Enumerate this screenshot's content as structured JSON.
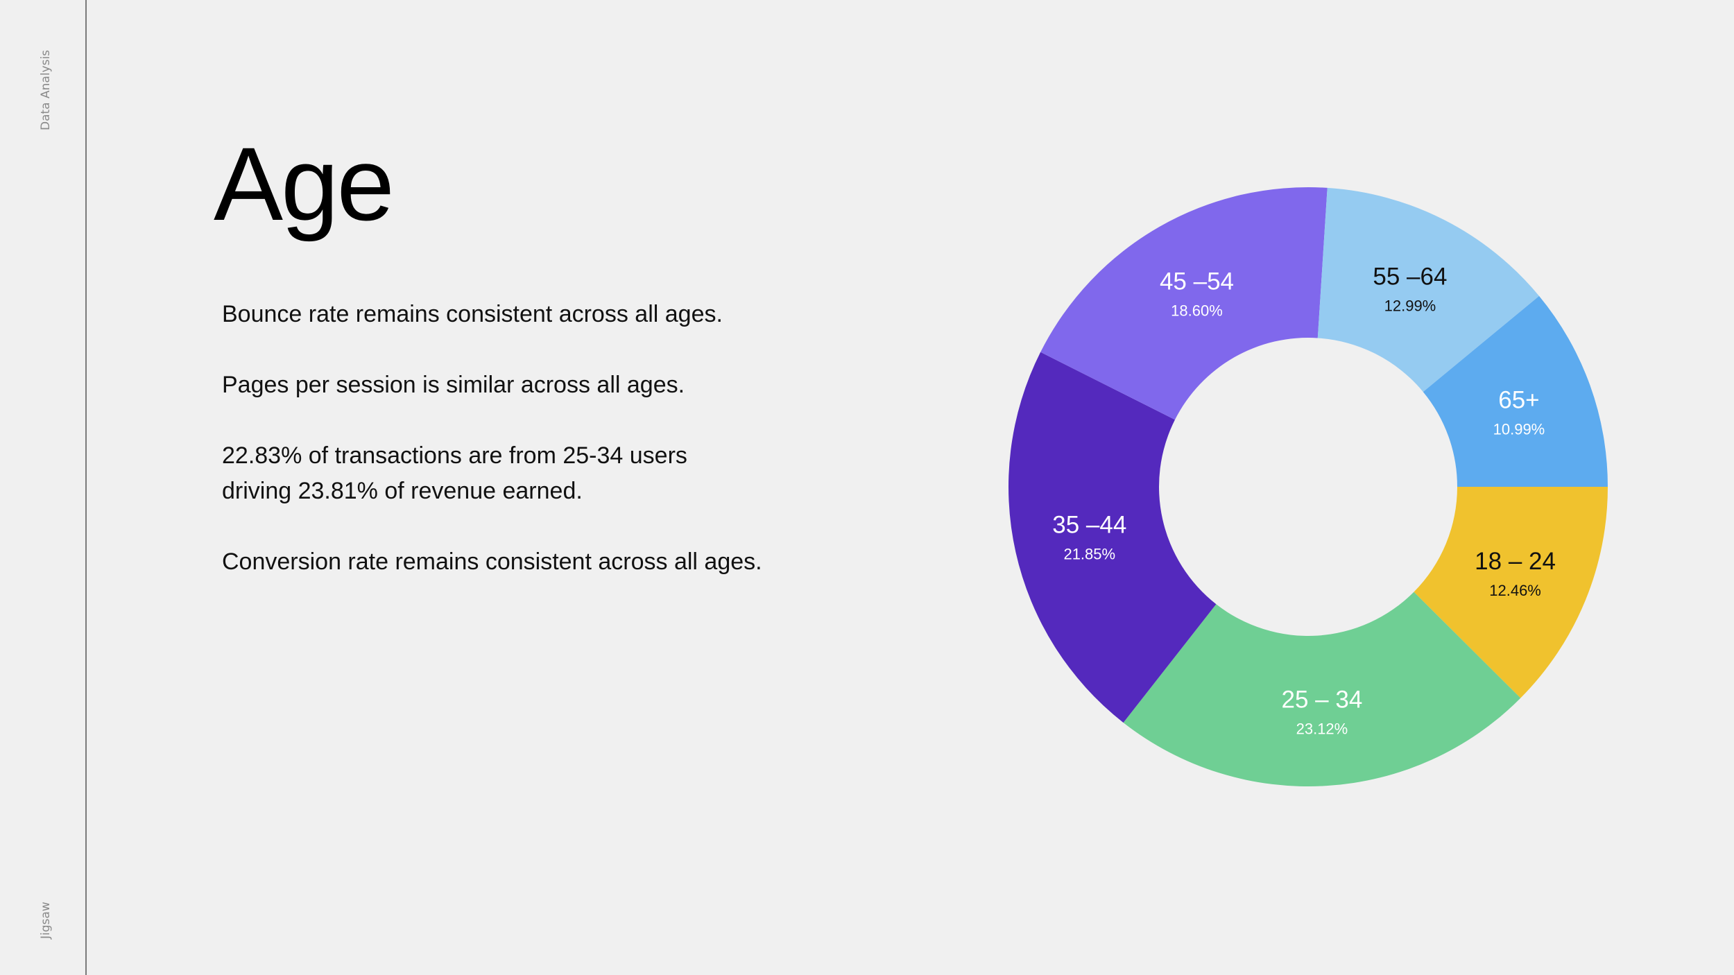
{
  "sidebar": {
    "top_label": "Data Analysis",
    "bottom_label": "Jigsaw"
  },
  "slide": {
    "title": "Age",
    "bullets": [
      "Bounce rate remains consistent across all ages.",
      "Pages per session is similar across all ages.",
      "22.83% of transactions are from 25-34 users driving 23.81% of revenue earned.",
      "Conversion rate remains consistent across all ages."
    ]
  },
  "chart_data": {
    "type": "pie",
    "donut": true,
    "title": "",
    "categories": [
      "18 – 24",
      "25 – 34",
      "35 –44",
      "45 –54",
      "55 –64",
      "65+"
    ],
    "values": [
      12.46,
      23.12,
      21.85,
      18.6,
      12.99,
      10.99
    ],
    "value_labels": [
      "12.46%",
      "23.12%",
      "21.85%",
      "18.60%",
      "12.99%",
      "10.99%"
    ],
    "colors": [
      "#f0c22e",
      "#6fcf94",
      "#5429bd",
      "#8068ec",
      "#95cbf1",
      "#5dabef"
    ],
    "label_colors": [
      "#111111",
      "#ffffff",
      "#ffffff",
      "#ffffff",
      "#111111",
      "#ffffff"
    ],
    "legend": "none"
  }
}
